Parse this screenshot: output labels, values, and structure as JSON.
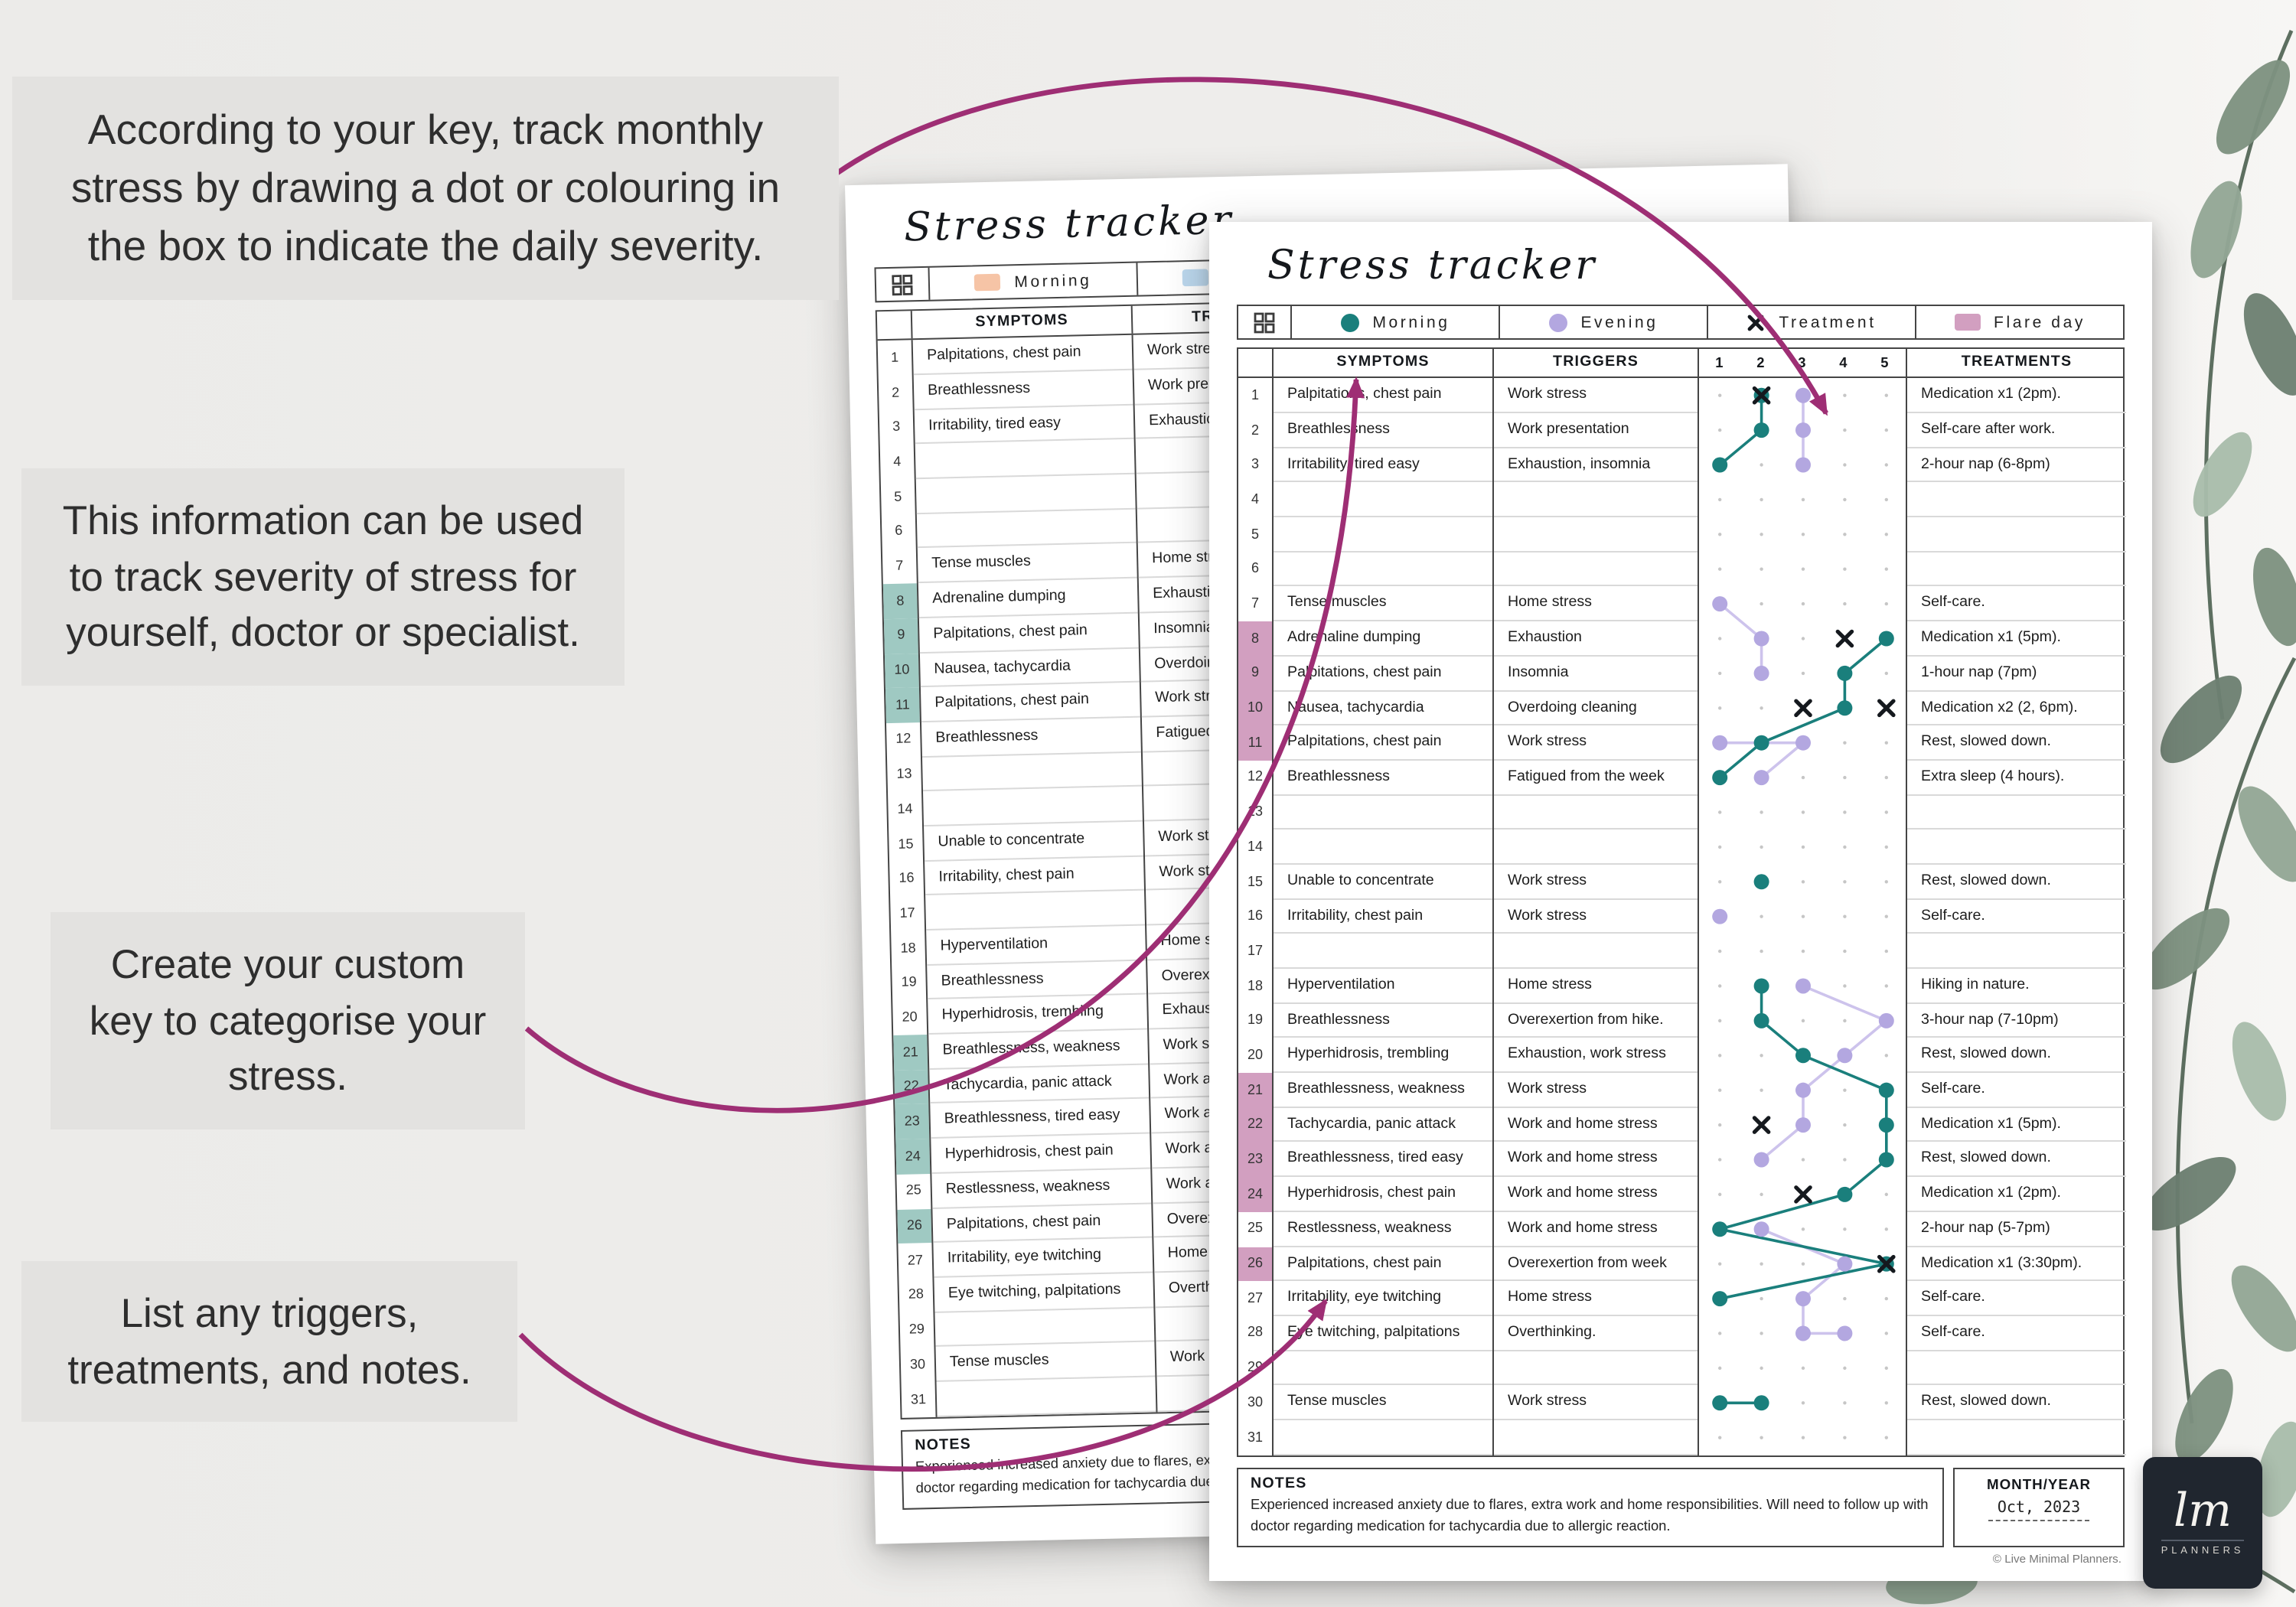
{
  "callouts": [
    {
      "text": "According to your key, track monthly stress by drawing a dot or colouring in the box to indicate the daily severity."
    },
    {
      "text": "This information can be used to track severity of stress for yourself, doctor or specialist."
    },
    {
      "text": "Create your custom key to categorise your stress."
    },
    {
      "text": "List any triggers, treatments, and notes."
    }
  ],
  "page": {
    "title": "Stress tracker",
    "key": {
      "morning": "Morning",
      "evening": "Evening",
      "treatment": "Treatment",
      "flare": "Flare day"
    },
    "headers": {
      "symptoms": "SYMPTOMS",
      "triggers": "TRIGGERS",
      "severity": [
        "1",
        "2",
        "3",
        "4",
        "5"
      ],
      "treatments": "TREATMENTS"
    },
    "notes_label": "NOTES",
    "notes": "Experienced increased anxiety due to flares, extra work and home responsibilities. Will need to follow up with doctor regarding medication for tachycardia due to allergic reaction.",
    "month_label": "MONTH/YEAR",
    "month_value": "Oct, 2023",
    "copyright": "© Live Minimal Planners.",
    "rows": [
      {
        "n": 1,
        "symptom": "Palpitations, chest pain",
        "trigger": "Work stress",
        "treatment": "Medication x1 (2pm).",
        "flare": false,
        "marks": [
          {
            "t": "m",
            "v": 2
          },
          {
            "t": "e",
            "v": 3
          },
          {
            "t": "x",
            "v": 2
          }
        ]
      },
      {
        "n": 2,
        "symptom": "Breathlessness",
        "trigger": "Work presentation",
        "treatment": "Self-care after work.",
        "flare": false,
        "marks": [
          {
            "t": "m",
            "v": 2
          },
          {
            "t": "e",
            "v": 3
          }
        ]
      },
      {
        "n": 3,
        "symptom": "Irritability, tired easy",
        "trigger": "Exhaustion, insomnia",
        "treatment": "2-hour nap (6-8pm)",
        "flare": false,
        "marks": [
          {
            "t": "m",
            "v": 1
          },
          {
            "t": "e",
            "v": 3
          }
        ]
      },
      {
        "n": 4,
        "symptom": "",
        "trigger": "",
        "treatment": "",
        "flare": false,
        "marks": []
      },
      {
        "n": 5,
        "symptom": "",
        "trigger": "",
        "treatment": "",
        "flare": false,
        "marks": []
      },
      {
        "n": 6,
        "symptom": "",
        "trigger": "",
        "treatment": "",
        "flare": false,
        "marks": []
      },
      {
        "n": 7,
        "symptom": "Tense muscles",
        "trigger": "Home stress",
        "treatment": "Self-care.",
        "flare": false,
        "marks": [
          {
            "t": "e",
            "v": 1
          }
        ]
      },
      {
        "n": 8,
        "symptom": "Adrenaline dumping",
        "trigger": "Exhaustion",
        "treatment": "Medication x1 (5pm).",
        "flare": true,
        "marks": [
          {
            "t": "e",
            "v": 2
          },
          {
            "t": "x",
            "v": 4
          },
          {
            "t": "m",
            "v": 5
          }
        ]
      },
      {
        "n": 9,
        "symptom": "Palpitations, chest pain",
        "trigger": "Insomnia",
        "treatment": "1-hour nap (7pm)",
        "flare": true,
        "marks": [
          {
            "t": "e",
            "v": 2
          },
          {
            "t": "m",
            "v": 4
          }
        ]
      },
      {
        "n": 10,
        "symptom": "Nausea, tachycardia",
        "trigger": "Overdoing cleaning",
        "treatment": "Medication x2 (2, 6pm).",
        "flare": true,
        "marks": [
          {
            "t": "x",
            "v": 3
          },
          {
            "t": "m",
            "v": 4
          },
          {
            "t": "x",
            "v": 5
          }
        ]
      },
      {
        "n": 11,
        "symptom": "Palpitations, chest pain",
        "trigger": "Work stress",
        "treatment": "Rest, slowed down.",
        "flare": true,
        "marks": [
          {
            "t": "e",
            "v": 1
          },
          {
            "t": "m",
            "v": 2
          },
          {
            "t": "e",
            "v": 3
          }
        ]
      },
      {
        "n": 12,
        "symptom": "Breathlessness",
        "trigger": "Fatigued from the week",
        "treatment": "Extra sleep (4 hours).",
        "flare": false,
        "marks": [
          {
            "t": "m",
            "v": 1
          },
          {
            "t": "e",
            "v": 2
          }
        ]
      },
      {
        "n": 13,
        "symptom": "",
        "trigger": "",
        "treatment": "",
        "flare": false,
        "marks": []
      },
      {
        "n": 14,
        "symptom": "",
        "trigger": "",
        "treatment": "",
        "flare": false,
        "marks": []
      },
      {
        "n": 15,
        "symptom": "Unable to concentrate",
        "trigger": "Work stress",
        "treatment": "Rest, slowed down.",
        "flare": false,
        "marks": [
          {
            "t": "m",
            "v": 2
          }
        ]
      },
      {
        "n": 16,
        "symptom": "Irritability, chest pain",
        "trigger": "Work stress",
        "treatment": "Self-care.",
        "flare": false,
        "marks": [
          {
            "t": "e",
            "v": 1
          }
        ]
      },
      {
        "n": 17,
        "symptom": "",
        "trigger": "",
        "treatment": "",
        "flare": false,
        "marks": []
      },
      {
        "n": 18,
        "symptom": "Hyperventilation",
        "trigger": "Home stress",
        "treatment": "Hiking in nature.",
        "flare": false,
        "marks": [
          {
            "t": "m",
            "v": 2
          },
          {
            "t": "e",
            "v": 3
          }
        ]
      },
      {
        "n": 19,
        "symptom": "Breathlessness",
        "trigger": "Overexertion from hike.",
        "treatment": "3-hour nap (7-10pm)",
        "flare": false,
        "marks": [
          {
            "t": "m",
            "v": 2
          },
          {
            "t": "e",
            "v": 5
          }
        ]
      },
      {
        "n": 20,
        "symptom": "Hyperhidrosis, trembling",
        "trigger": "Exhaustion, work stress",
        "treatment": "Rest, slowed down.",
        "flare": false,
        "marks": [
          {
            "t": "m",
            "v": 3
          },
          {
            "t": "e",
            "v": 4
          }
        ]
      },
      {
        "n": 21,
        "symptom": "Breathlessness, weakness",
        "trigger": "Work stress",
        "treatment": "Self-care.",
        "flare": true,
        "marks": [
          {
            "t": "e",
            "v": 3
          },
          {
            "t": "m",
            "v": 5
          }
        ]
      },
      {
        "n": 22,
        "symptom": "Tachycardia, panic attack",
        "trigger": "Work and home stress",
        "treatment": "Medication x1 (5pm).",
        "flare": true,
        "marks": [
          {
            "t": "x",
            "v": 2
          },
          {
            "t": "e",
            "v": 3
          },
          {
            "t": "m",
            "v": 5
          }
        ]
      },
      {
        "n": 23,
        "symptom": "Breathlessness, tired easy",
        "trigger": "Work and home stress",
        "treatment": "Rest, slowed down.",
        "flare": true,
        "marks": [
          {
            "t": "e",
            "v": 2
          },
          {
            "t": "m",
            "v": 5
          }
        ]
      },
      {
        "n": 24,
        "symptom": "Hyperhidrosis, chest pain",
        "trigger": "Work and home stress",
        "treatment": "Medication x1 (2pm).",
        "flare": true,
        "marks": [
          {
            "t": "x",
            "v": 3
          },
          {
            "t": "m",
            "v": 4
          }
        ]
      },
      {
        "n": 25,
        "symptom": "Restlessness, weakness",
        "trigger": "Work and home stress",
        "treatment": "2-hour nap (5-7pm)",
        "flare": false,
        "marks": [
          {
            "t": "m",
            "v": 1
          },
          {
            "t": "e",
            "v": 2
          }
        ]
      },
      {
        "n": 26,
        "symptom": "Palpitations, chest pain",
        "trigger": "Overexertion from week",
        "treatment": "Medication x1 (3:30pm).",
        "flare": true,
        "marks": [
          {
            "t": "e",
            "v": 4
          },
          {
            "t": "m",
            "v": 5
          },
          {
            "t": "x",
            "v": 5
          }
        ]
      },
      {
        "n": 27,
        "symptom": "Irritability, eye twitching",
        "trigger": "Home stress",
        "treatment": "Self-care.",
        "flare": false,
        "marks": [
          {
            "t": "m",
            "v": 1
          },
          {
            "t": "e",
            "v": 3
          }
        ]
      },
      {
        "n": 28,
        "symptom": "Eye twitching, palpitations",
        "trigger": "Overthinking.",
        "treatment": "Self-care.",
        "flare": false,
        "marks": [
          {
            "t": "e",
            "v": 3
          },
          {
            "t": "e",
            "v": 4
          }
        ]
      },
      {
        "n": 29,
        "symptom": "",
        "trigger": "",
        "treatment": "",
        "flare": false,
        "marks": []
      },
      {
        "n": 30,
        "symptom": "Tense muscles",
        "trigger": "Work stress",
        "treatment": "Rest, slowed down.",
        "flare": false,
        "marks": [
          {
            "t": "m",
            "v": 1
          },
          {
            "t": "m",
            "v": 2
          }
        ]
      },
      {
        "n": 31,
        "symptom": "",
        "trigger": "",
        "treatment": "",
        "flare": false,
        "marks": []
      }
    ]
  },
  "logo": {
    "initials": "lm",
    "label": "PLANNERS"
  },
  "colors": {
    "background": "#ecebe9",
    "callout_bg": "#e3e2e0",
    "paper": "#ffffff",
    "table_line": "#454545",
    "row_line": "#d9d9d9",
    "morning": "#1a7f7c",
    "evening": "#b3a7e0",
    "evening_line": "#cdc3ec",
    "treatment_x": "#15191e",
    "flare_front": "#d29fc0",
    "flare_back": "#9fc9c2",
    "back_morning": "#f6c4a6",
    "back_evening": "#bcd8ee",
    "arrow": "#9e2e74",
    "logo_bg": "#20262f"
  }
}
